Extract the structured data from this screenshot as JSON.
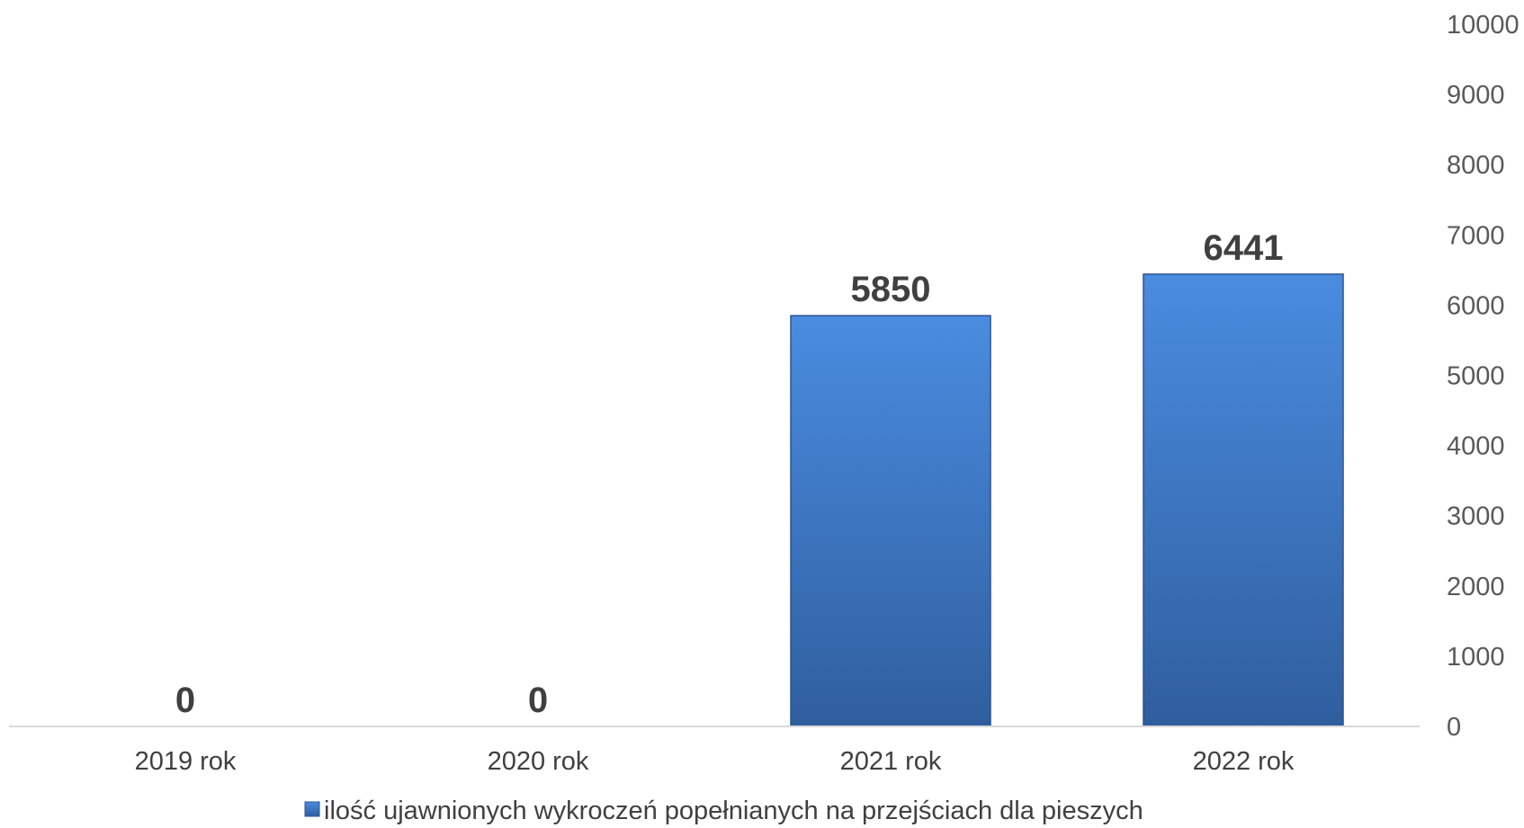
{
  "chart_data": {
    "type": "bar",
    "categories": [
      "2019 rok",
      "2020 rok",
      "2021 rok",
      "2022 rok"
    ],
    "series": [
      {
        "name": "ilość ujawnionych wykroczeń popełnianych na przejściach dla pieszych",
        "values": [
          0,
          0,
          5850,
          6441
        ]
      }
    ],
    "y_axis_position": "right",
    "yticks": [
      0,
      1000,
      2000,
      3000,
      4000,
      5000,
      6000,
      7000,
      8000,
      9000,
      10000
    ],
    "ylim": [
      0,
      10000
    ],
    "grid": false,
    "legend_position": "bottom",
    "data_labels": true,
    "colors": {
      "bar_top": "#4A8CE0",
      "bar_bottom": "#2F5E9E",
      "bar_stroke": "#2A5590",
      "axis_line": "#D9D9D9"
    }
  }
}
